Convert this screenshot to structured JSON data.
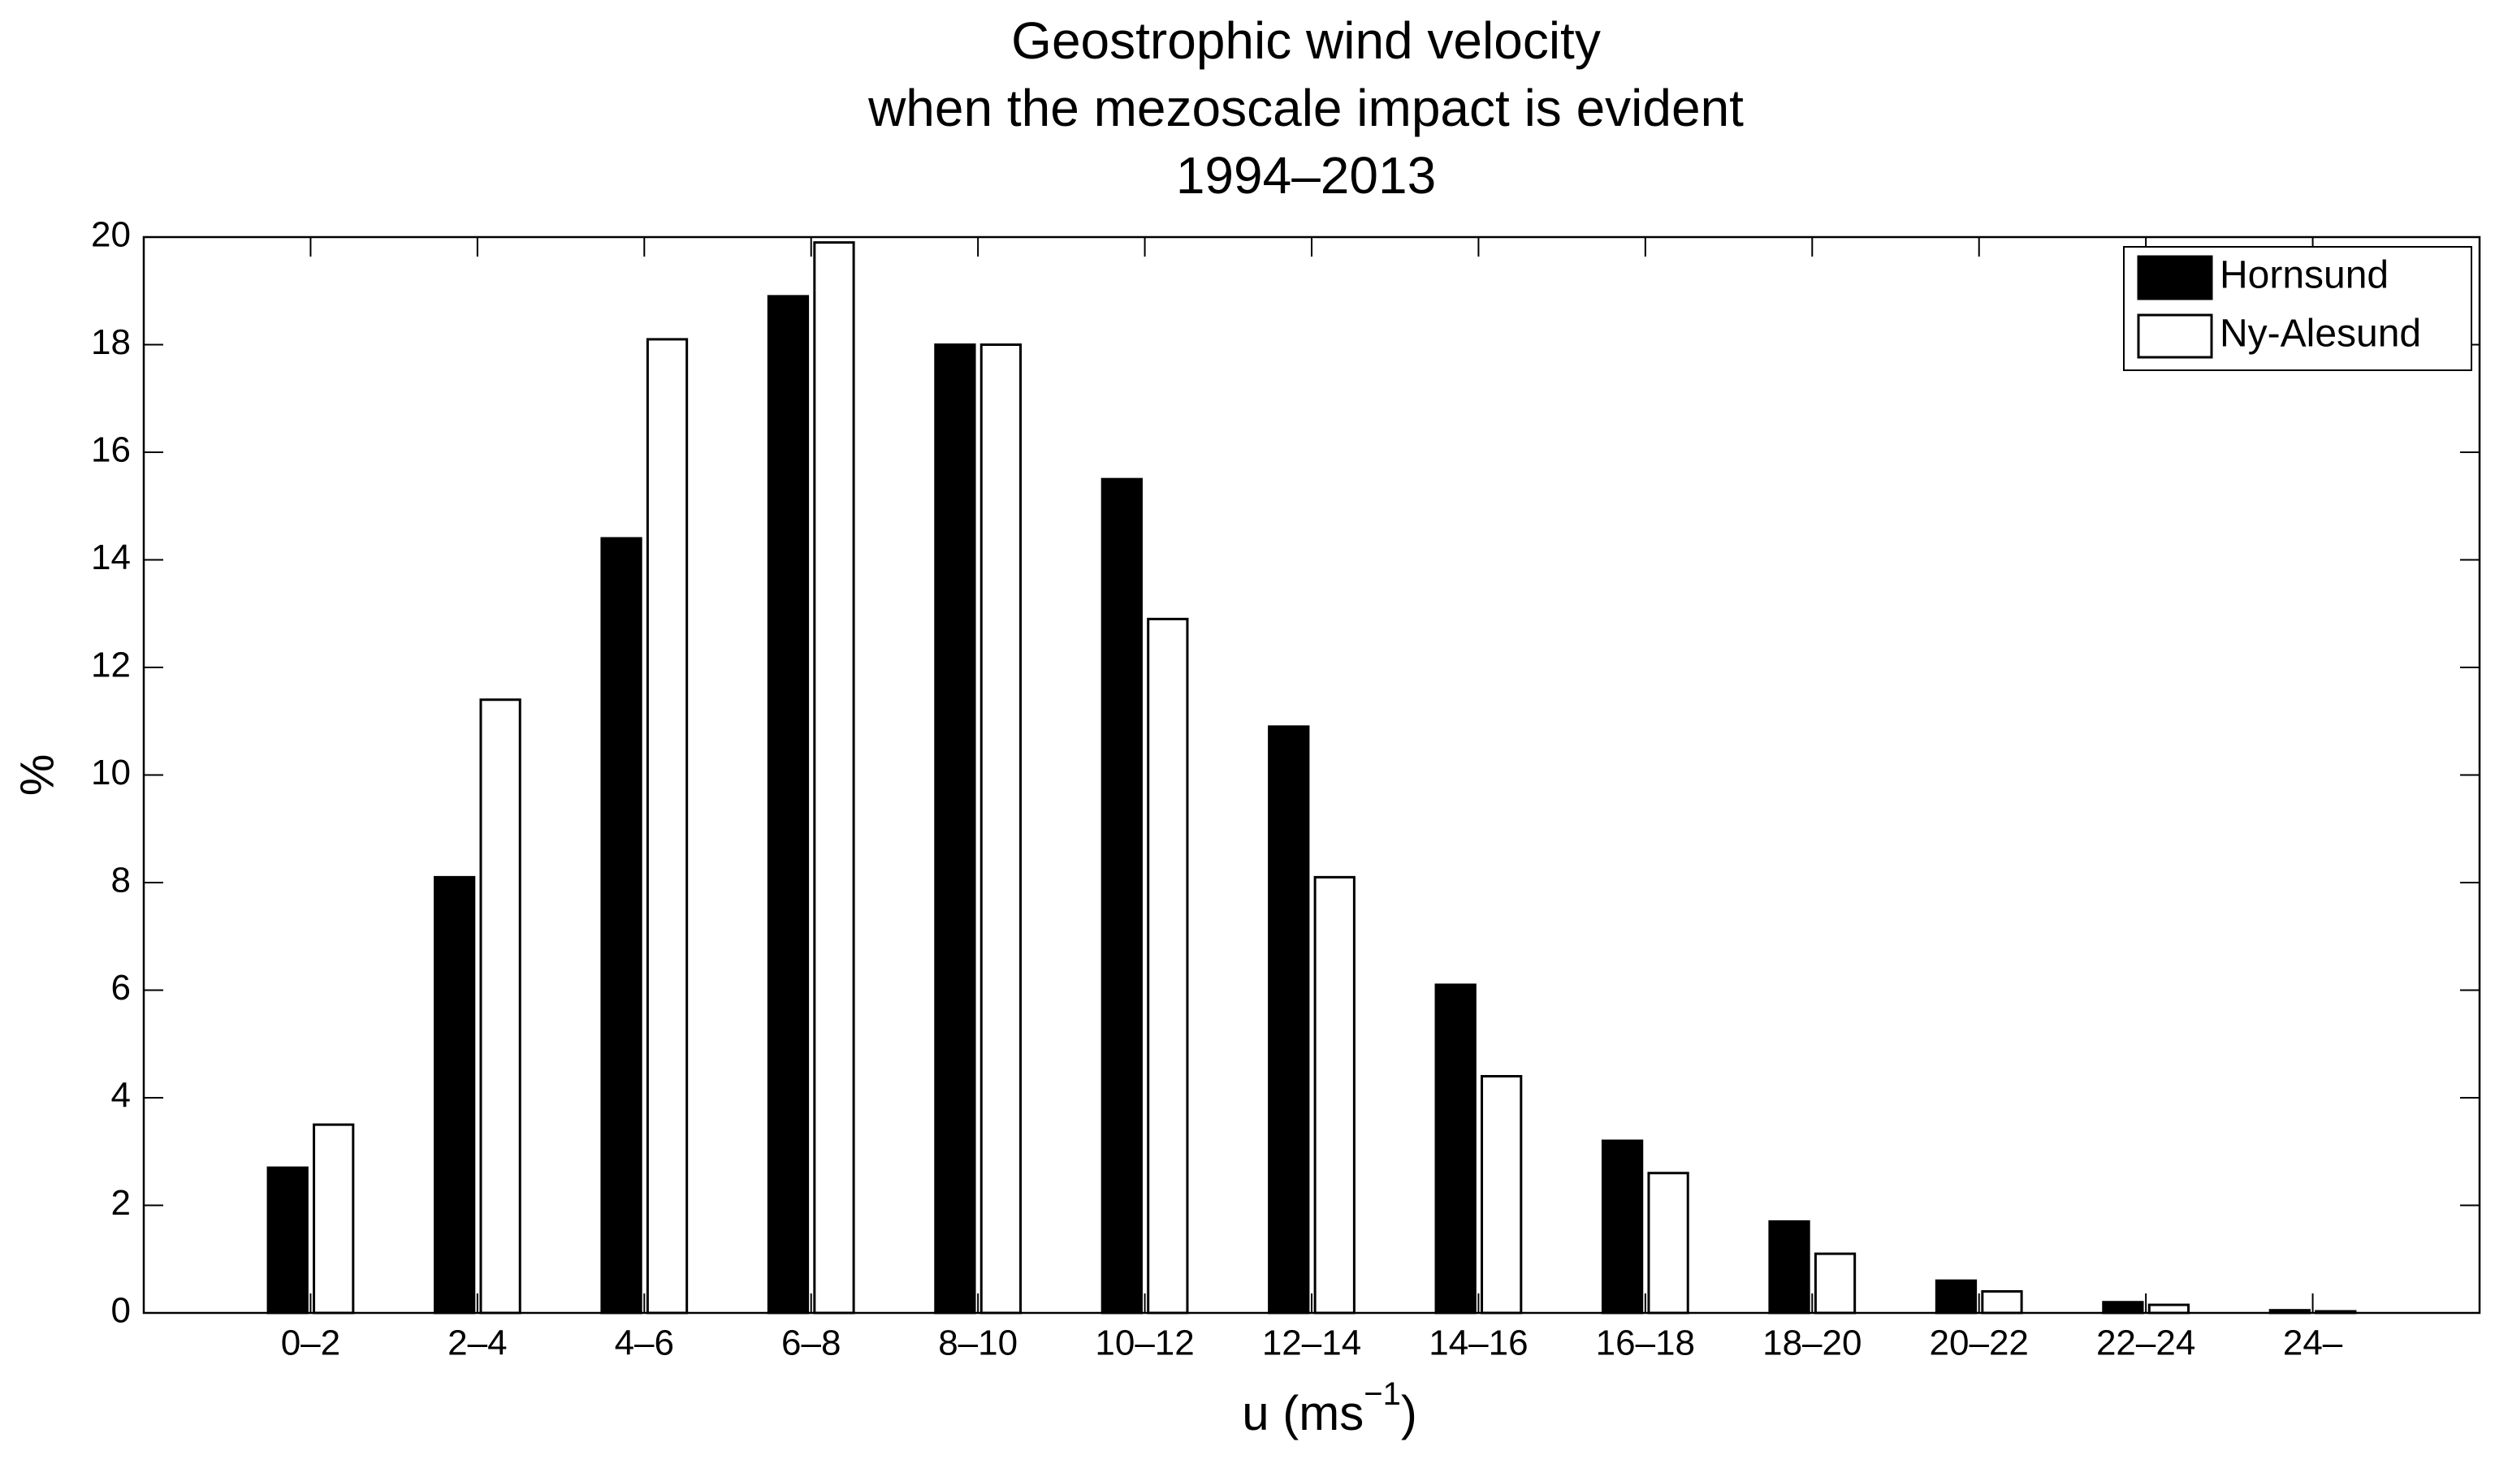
{
  "chart_data": {
    "type": "bar",
    "title": [
      "Geostrophic wind velocity",
      "when the mezoscale impact is evident",
      "1994–2013"
    ],
    "xlabel": [
      "u (ms",
      "−1",
      ")"
    ],
    "ylabel": "%",
    "categories": [
      "0–2",
      "2–4",
      "4–6",
      "6–8",
      "8–10",
      "10–12",
      "12–14",
      "14–16",
      "16–18",
      "18–20",
      "20–22",
      "22–24",
      "24–"
    ],
    "series": [
      {
        "name": "Hornsund",
        "color": "#000000",
        "values": [
          2.7,
          8.1,
          14.4,
          18.9,
          18.0,
          15.5,
          10.9,
          6.1,
          3.2,
          1.7,
          0.6,
          0.2,
          0.05
        ]
      },
      {
        "name": "Ny-Alesund",
        "color": "#ffffff",
        "values": [
          3.5,
          11.4,
          18.1,
          19.9,
          18.0,
          12.9,
          8.1,
          4.4,
          2.6,
          1.1,
          0.4,
          0.15,
          0.03
        ]
      }
    ],
    "ylim": [
      0,
      20
    ],
    "yticks": [
      0,
      2,
      4,
      6,
      8,
      10,
      12,
      14,
      16,
      18,
      20
    ],
    "legend": "upper right",
    "grid": false
  }
}
